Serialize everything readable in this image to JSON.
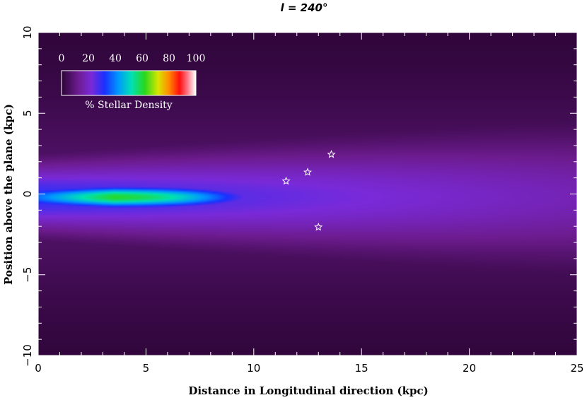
{
  "chart_data": {
    "type": "heatmap",
    "title": "l  = 240°",
    "xlabel": "Distance in Longitudinal direction (kpc)",
    "ylabel": "Position above the plane (kpc)",
    "xlim": [
      0,
      25
    ],
    "ylim": [
      -10,
      10
    ],
    "x_ticks": [
      0,
      5,
      10,
      15,
      20,
      25
    ],
    "y_ticks": [
      -10,
      -5,
      0,
      5,
      10
    ],
    "x_minor_step": 1,
    "y_minor_step": 1,
    "colorbar": {
      "label": "% Stellar Density",
      "ticks": [
        0,
        20,
        40,
        60,
        80,
        100
      ],
      "placement": "top-left"
    },
    "colormap": [
      [
        0,
        "#2e0538"
      ],
      [
        12,
        "#6d1c8f"
      ],
      [
        22,
        "#7a2ad8"
      ],
      [
        32,
        "#1a30ff"
      ],
      [
        42,
        "#0096ff"
      ],
      [
        52,
        "#00e1b4"
      ],
      [
        62,
        "#29d71d"
      ],
      [
        72,
        "#d8e600"
      ],
      [
        80,
        "#ff8c00"
      ],
      [
        88,
        "#ff0f0f"
      ],
      [
        94,
        "#ff7888"
      ],
      [
        100,
        "#ffffff"
      ]
    ],
    "density_profile": {
      "peak_percent": 62,
      "peak_distance_kpc": 3.5,
      "midplane_offset_kpc": -0.2,
      "core_width_kpc": 0.5,
      "core_length_kpc": 9.5,
      "thick_width_near_kpc": 1.5,
      "thick_width_far_kpc": 2.8,
      "thick_percent_near": 30,
      "thick_percent_far": 17,
      "halo_width_kpc": 4.5,
      "halo_percent": 7
    },
    "markers": [
      {
        "x": 11.5,
        "y": 0.8
      },
      {
        "x": 12.5,
        "y": 1.35
      },
      {
        "x": 13.6,
        "y": 2.45
      },
      {
        "x": 13.0,
        "y": -2.05
      }
    ]
  }
}
